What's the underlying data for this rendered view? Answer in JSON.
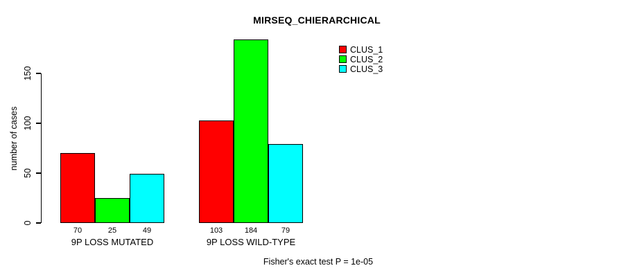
{
  "chart_data": {
    "type": "bar",
    "title": "MIRSEQ_CHIERARCHICAL",
    "ylabel": "number of cases",
    "xlabel": "",
    "categories": [
      "9P LOSS MUTATED",
      "9P LOSS WILD-TYPE"
    ],
    "series": [
      {
        "name": "CLUS_1",
        "color": "#ff0000",
        "values": [
          70,
          103
        ]
      },
      {
        "name": "CLUS_2",
        "color": "#00ff00",
        "values": [
          25,
          184
        ]
      },
      {
        "name": "CLUS_3",
        "color": "#00ffff",
        "values": [
          49,
          79
        ]
      }
    ],
    "bar_value_labels": [
      [
        "70",
        "103"
      ],
      [
        "25",
        "184"
      ],
      [
        "49",
        "79"
      ]
    ],
    "yticks": [
      0,
      50,
      100,
      150
    ],
    "ylim": [
      0,
      150
    ],
    "grid": false,
    "legend_position": "top-right",
    "legend_entries": [
      "CLUS_1",
      "CLUS_2",
      "CLUS_3"
    ],
    "annotation": "Fisher's exact test P = 1e-05",
    "axis_color": "#000000",
    "bar_border_color": "#000000",
    "background_color": "#ffffff"
  }
}
